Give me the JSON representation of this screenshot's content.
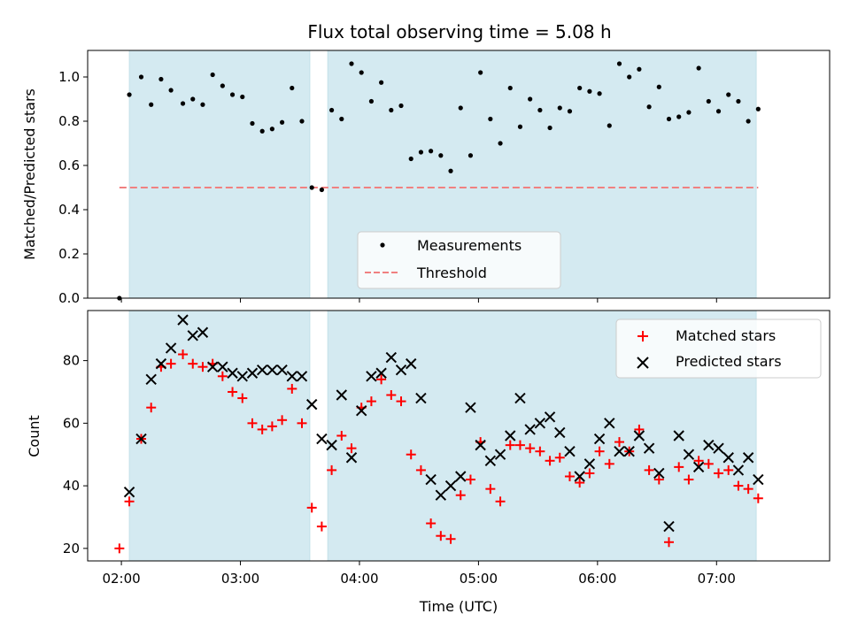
{
  "chart_data": {
    "type": "scatter",
    "title": "Flux total observing time = 5.08 h",
    "xlabel": "Time (UTC)",
    "xlim": [
      "01:43",
      "07:57"
    ],
    "xticks": [
      "02:00",
      "03:00",
      "04:00",
      "05:00",
      "06:00",
      "07:00"
    ],
    "colors": {
      "shade": "#d4eaf1",
      "threshold": "#f08080",
      "matched": "#ff0000",
      "predicted": "#000000",
      "measurement": "#000000"
    },
    "shaded_intervals": [
      [
        "02:04",
        "03:35"
      ],
      [
        "03:44",
        "07:20"
      ]
    ],
    "top": {
      "ylabel": "Matched/Predicted stars",
      "ylim": [
        0,
        1.12
      ],
      "yticks": [
        "0.0",
        "0.2",
        "0.4",
        "0.6",
        "0.8",
        "1.0"
      ],
      "threshold": 0.5,
      "legend": {
        "placement": "lower-center",
        "measurements_label": "Measurements",
        "threshold_label": "Threshold"
      },
      "measurements": [
        [
          "01:59",
          0.0
        ],
        [
          "02:04",
          0.92
        ],
        [
          "02:10",
          1.0
        ],
        [
          "02:15",
          0.875
        ],
        [
          "02:20",
          0.99
        ],
        [
          "02:25",
          0.94
        ],
        [
          "02:31",
          0.88
        ],
        [
          "02:36",
          0.9
        ],
        [
          "02:41",
          0.875
        ],
        [
          "02:46",
          1.01
        ],
        [
          "02:51",
          0.96
        ],
        [
          "02:56",
          0.92
        ],
        [
          "03:01",
          0.91
        ],
        [
          "03:06",
          0.79
        ],
        [
          "03:11",
          0.755
        ],
        [
          "03:16",
          0.765
        ],
        [
          "03:21",
          0.795
        ],
        [
          "03:26",
          0.95
        ],
        [
          "03:31",
          0.8
        ],
        [
          "03:36",
          0.5
        ],
        [
          "03:41",
          0.49
        ],
        [
          "03:46",
          0.85
        ],
        [
          "03:51",
          0.81
        ],
        [
          "03:56",
          1.06
        ],
        [
          "04:01",
          1.02
        ],
        [
          "04:06",
          0.89
        ],
        [
          "04:11",
          0.975
        ],
        [
          "04:16",
          0.85
        ],
        [
          "04:21",
          0.87
        ],
        [
          "04:26",
          0.63
        ],
        [
          "04:31",
          0.66
        ],
        [
          "04:36",
          0.665
        ],
        [
          "04:41",
          0.645
        ],
        [
          "04:46",
          0.575
        ],
        [
          "04:51",
          0.86
        ],
        [
          "04:56",
          0.645
        ],
        [
          "05:01",
          1.02
        ],
        [
          "05:06",
          0.81
        ],
        [
          "05:11",
          0.7
        ],
        [
          "05:16",
          0.95
        ],
        [
          "05:21",
          0.775
        ],
        [
          "05:26",
          0.9
        ],
        [
          "05:31",
          0.85
        ],
        [
          "05:36",
          0.77
        ],
        [
          "05:41",
          0.86
        ],
        [
          "05:46",
          0.845
        ],
        [
          "05:51",
          0.95
        ],
        [
          "05:56",
          0.935
        ],
        [
          "06:01",
          0.925
        ],
        [
          "06:06",
          0.78
        ],
        [
          "06:11",
          1.06
        ],
        [
          "06:16",
          1.0
        ],
        [
          "06:21",
          1.035
        ],
        [
          "06:26",
          0.865
        ],
        [
          "06:31",
          0.955
        ],
        [
          "06:36",
          0.81
        ],
        [
          "06:41",
          0.82
        ],
        [
          "06:46",
          0.84
        ],
        [
          "06:51",
          1.04
        ],
        [
          "06:56",
          0.89
        ],
        [
          "07:01",
          0.845
        ],
        [
          "07:06",
          0.92
        ],
        [
          "07:11",
          0.89
        ],
        [
          "07:16",
          0.8
        ],
        [
          "07:21",
          0.855
        ]
      ]
    },
    "bottom": {
      "ylabel": "Count",
      "ylim": [
        16,
        96
      ],
      "yticks": [
        "20",
        "40",
        "60",
        "80"
      ],
      "legend": {
        "placement": "upper-right",
        "matched_label": "Matched stars",
        "predicted_label": "Predicted stars"
      },
      "matched": [
        [
          "01:59",
          20
        ],
        [
          "02:04",
          35
        ],
        [
          "02:10",
          55
        ],
        [
          "02:15",
          65
        ],
        [
          "02:20",
          78
        ],
        [
          "02:25",
          79
        ],
        [
          "02:31",
          82
        ],
        [
          "02:36",
          79
        ],
        [
          "02:41",
          78
        ],
        [
          "02:46",
          79
        ],
        [
          "02:51",
          75
        ],
        [
          "02:56",
          70
        ],
        [
          "03:01",
          68
        ],
        [
          "03:06",
          60
        ],
        [
          "03:11",
          58
        ],
        [
          "03:16",
          59
        ],
        [
          "03:21",
          61
        ],
        [
          "03:26",
          71
        ],
        [
          "03:31",
          60
        ],
        [
          "03:36",
          33
        ],
        [
          "03:41",
          27
        ],
        [
          "03:46",
          45
        ],
        [
          "03:51",
          56
        ],
        [
          "03:56",
          52
        ],
        [
          "04:01",
          65
        ],
        [
          "04:06",
          67
        ],
        [
          "04:11",
          74
        ],
        [
          "04:16",
          69
        ],
        [
          "04:21",
          67
        ],
        [
          "04:26",
          50
        ],
        [
          "04:31",
          45
        ],
        [
          "04:36",
          28
        ],
        [
          "04:41",
          24
        ],
        [
          "04:46",
          23
        ],
        [
          "04:51",
          37
        ],
        [
          "04:56",
          42
        ],
        [
          "05:01",
          54
        ],
        [
          "05:06",
          39
        ],
        [
          "05:11",
          35
        ],
        [
          "05:16",
          53
        ],
        [
          "05:21",
          53
        ],
        [
          "05:26",
          52
        ],
        [
          "05:31",
          51
        ],
        [
          "05:36",
          48
        ],
        [
          "05:41",
          49
        ],
        [
          "05:46",
          43
        ],
        [
          "05:51",
          41
        ],
        [
          "05:56",
          44
        ],
        [
          "06:01",
          51
        ],
        [
          "06:06",
          47
        ],
        [
          "06:11",
          54
        ],
        [
          "06:16",
          51
        ],
        [
          "06:21",
          58
        ],
        [
          "06:26",
          45
        ],
        [
          "06:31",
          42
        ],
        [
          "06:36",
          22
        ],
        [
          "06:41",
          46
        ],
        [
          "06:46",
          42
        ],
        [
          "06:51",
          48
        ],
        [
          "06:56",
          47
        ],
        [
          "07:01",
          44
        ],
        [
          "07:06",
          45
        ],
        [
          "07:11",
          40
        ],
        [
          "07:16",
          39
        ],
        [
          "07:21",
          36
        ]
      ],
      "predicted": [
        [
          "02:04",
          38
        ],
        [
          "02:10",
          55
        ],
        [
          "02:15",
          74
        ],
        [
          "02:20",
          79
        ],
        [
          "02:25",
          84
        ],
        [
          "02:31",
          93
        ],
        [
          "02:36",
          88
        ],
        [
          "02:41",
          89
        ],
        [
          "02:46",
          78
        ],
        [
          "02:51",
          78
        ],
        [
          "02:56",
          76
        ],
        [
          "03:01",
          75
        ],
        [
          "03:06",
          76
        ],
        [
          "03:11",
          77
        ],
        [
          "03:16",
          77
        ],
        [
          "03:21",
          77
        ],
        [
          "03:26",
          75
        ],
        [
          "03:31",
          75
        ],
        [
          "03:36",
          66
        ],
        [
          "03:41",
          55
        ],
        [
          "03:46",
          53
        ],
        [
          "03:51",
          69
        ],
        [
          "03:56",
          49
        ],
        [
          "04:01",
          64
        ],
        [
          "04:06",
          75
        ],
        [
          "04:11",
          76
        ],
        [
          "04:16",
          81
        ],
        [
          "04:21",
          77
        ],
        [
          "04:26",
          79
        ],
        [
          "04:31",
          68
        ],
        [
          "04:36",
          42
        ],
        [
          "04:41",
          37
        ],
        [
          "04:46",
          40
        ],
        [
          "04:51",
          43
        ],
        [
          "04:56",
          65
        ],
        [
          "05:01",
          53
        ],
        [
          "05:06",
          48
        ],
        [
          "05:11",
          50
        ],
        [
          "05:16",
          56
        ],
        [
          "05:21",
          68
        ],
        [
          "05:26",
          58
        ],
        [
          "05:31",
          60
        ],
        [
          "05:36",
          62
        ],
        [
          "05:41",
          57
        ],
        [
          "05:46",
          51
        ],
        [
          "05:51",
          43
        ],
        [
          "05:56",
          47
        ],
        [
          "06:01",
          55
        ],
        [
          "06:06",
          60
        ],
        [
          "06:11",
          51
        ],
        [
          "06:16",
          51
        ],
        [
          "06:21",
          56
        ],
        [
          "06:26",
          52
        ],
        [
          "06:31",
          44
        ],
        [
          "06:36",
          27
        ],
        [
          "06:41",
          56
        ],
        [
          "06:46",
          50
        ],
        [
          "06:51",
          46
        ],
        [
          "06:56",
          53
        ],
        [
          "07:01",
          52
        ],
        [
          "07:06",
          49
        ],
        [
          "07:11",
          45
        ],
        [
          "07:16",
          49
        ],
        [
          "07:21",
          42
        ]
      ]
    }
  }
}
